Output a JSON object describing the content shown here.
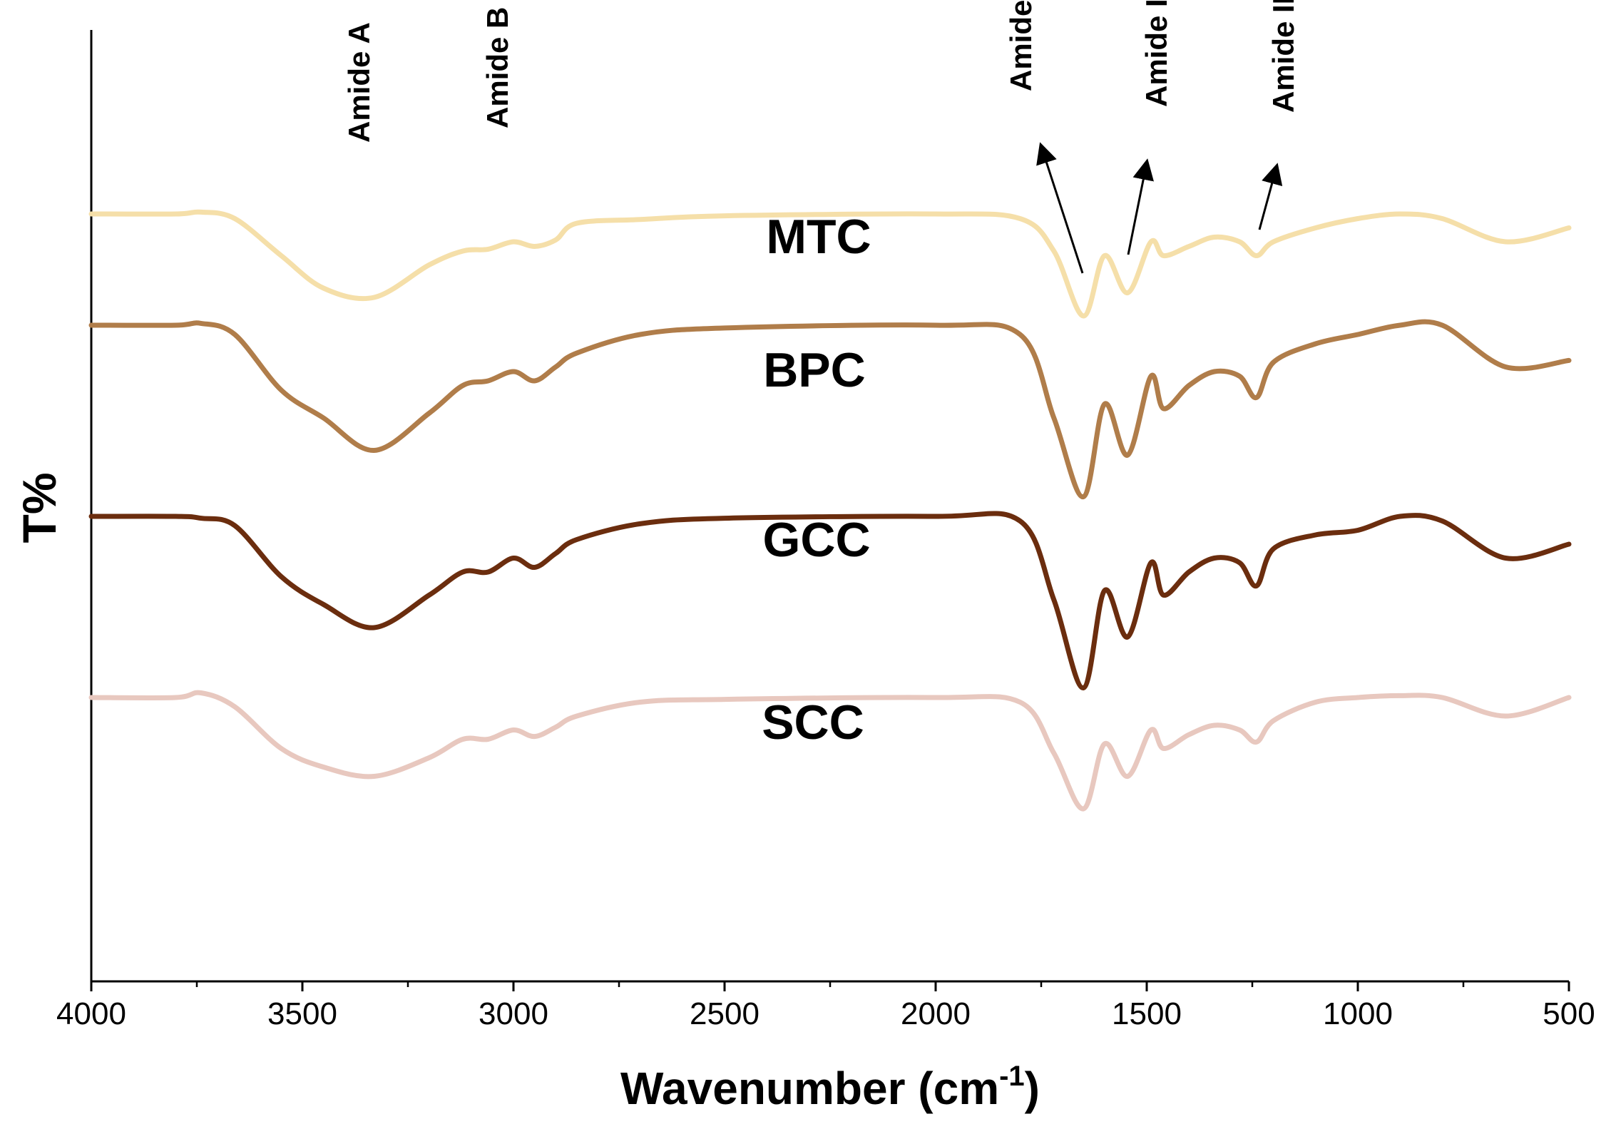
{
  "chart_data": {
    "type": "line",
    "title": "",
    "xlabel": "Wavenumber (cm",
    "xlabel_sup": "-1",
    "xlabel_close": ")",
    "ylabel": "T%",
    "xlim": [
      4000,
      500
    ],
    "x_ticks": [
      4000,
      3500,
      3000,
      2500,
      2000,
      1500,
      1000,
      500
    ],
    "y_ticks_visible": false,
    "grid": false,
    "annotations": [
      {
        "text": "Amide A",
        "x": 3330,
        "arrow": false
      },
      {
        "text": "Amide B",
        "x": 3000,
        "arrow": false
      },
      {
        "text": "Amide I",
        "x": 1650,
        "arrow": true
      },
      {
        "text": "Amide II",
        "x": 1540,
        "arrow": true
      },
      {
        "text": "Amide III",
        "x": 1240,
        "arrow": true
      }
    ],
    "series": [
      {
        "name": "MTC",
        "color": "#F5DFA9",
        "relative_intensity": 0.55,
        "baseline_offset": 0.0,
        "points": [
          [
            4000,
            0
          ],
          [
            3800,
            0
          ],
          [
            3740,
            0.02
          ],
          [
            3660,
            -0.05
          ],
          [
            3550,
            -0.45
          ],
          [
            3450,
            -0.8
          ],
          [
            3330,
            -0.9
          ],
          [
            3200,
            -0.55
          ],
          [
            3120,
            -0.4
          ],
          [
            3060,
            -0.38
          ],
          [
            3000,
            -0.3
          ],
          [
            2950,
            -0.35
          ],
          [
            2900,
            -0.28
          ],
          [
            2850,
            -0.1
          ],
          [
            2700,
            -0.06
          ],
          [
            2500,
            -0.02
          ],
          [
            2000,
            0
          ],
          [
            1800,
            -0.05
          ],
          [
            1720,
            -0.4
          ],
          [
            1650,
            -1.1
          ],
          [
            1600,
            -0.45
          ],
          [
            1545,
            -0.85
          ],
          [
            1490,
            -0.3
          ],
          [
            1460,
            -0.45
          ],
          [
            1400,
            -0.35
          ],
          [
            1340,
            -0.25
          ],
          [
            1280,
            -0.3
          ],
          [
            1240,
            -0.45
          ],
          [
            1200,
            -0.3
          ],
          [
            1100,
            -0.15
          ],
          [
            1000,
            -0.05
          ],
          [
            900,
            0
          ],
          [
            800,
            -0.05
          ],
          [
            650,
            -0.3
          ],
          [
            500,
            -0.15
          ]
        ]
      },
      {
        "name": "BPC",
        "color": "#B07D4A",
        "relative_intensity": 1.0,
        "baseline_offset": 1.0,
        "points": [
          [
            4000,
            0
          ],
          [
            3800,
            0
          ],
          [
            3740,
            0.02
          ],
          [
            3660,
            -0.1
          ],
          [
            3550,
            -0.7
          ],
          [
            3450,
            -1.0
          ],
          [
            3330,
            -1.35
          ],
          [
            3200,
            -0.95
          ],
          [
            3120,
            -0.65
          ],
          [
            3060,
            -0.6
          ],
          [
            3000,
            -0.5
          ],
          [
            2950,
            -0.6
          ],
          [
            2900,
            -0.45
          ],
          [
            2850,
            -0.3
          ],
          [
            2700,
            -0.1
          ],
          [
            2500,
            -0.03
          ],
          [
            2000,
            0
          ],
          [
            1800,
            -0.1
          ],
          [
            1720,
            -1.0
          ],
          [
            1650,
            -1.85
          ],
          [
            1600,
            -0.85
          ],
          [
            1545,
            -1.4
          ],
          [
            1490,
            -0.55
          ],
          [
            1460,
            -0.9
          ],
          [
            1400,
            -0.65
          ],
          [
            1340,
            -0.5
          ],
          [
            1280,
            -0.55
          ],
          [
            1240,
            -0.78
          ],
          [
            1200,
            -0.4
          ],
          [
            1100,
            -0.2
          ],
          [
            1000,
            -0.1
          ],
          [
            900,
            0
          ],
          [
            800,
            0
          ],
          [
            650,
            -0.45
          ],
          [
            500,
            -0.38
          ]
        ]
      },
      {
        "name": "GCC",
        "color": "#6B2D0E",
        "relative_intensity": 1.0,
        "baseline_offset": 2.0,
        "points": [
          [
            4000,
            0
          ],
          [
            3800,
            0
          ],
          [
            3740,
            -0.02
          ],
          [
            3660,
            -0.1
          ],
          [
            3550,
            -0.65
          ],
          [
            3450,
            -0.95
          ],
          [
            3330,
            -1.2
          ],
          [
            3200,
            -0.85
          ],
          [
            3120,
            -0.6
          ],
          [
            3060,
            -0.6
          ],
          [
            3000,
            -0.45
          ],
          [
            2950,
            -0.55
          ],
          [
            2900,
            -0.4
          ],
          [
            2850,
            -0.25
          ],
          [
            2700,
            -0.08
          ],
          [
            2500,
            -0.02
          ],
          [
            2000,
            0
          ],
          [
            1800,
            -0.05
          ],
          [
            1720,
            -0.9
          ],
          [
            1650,
            -1.85
          ],
          [
            1600,
            -0.8
          ],
          [
            1545,
            -1.3
          ],
          [
            1490,
            -0.5
          ],
          [
            1460,
            -0.85
          ],
          [
            1400,
            -0.6
          ],
          [
            1340,
            -0.45
          ],
          [
            1280,
            -0.5
          ],
          [
            1240,
            -0.75
          ],
          [
            1200,
            -0.35
          ],
          [
            1100,
            -0.2
          ],
          [
            1000,
            -0.15
          ],
          [
            900,
            0
          ],
          [
            800,
            -0.05
          ],
          [
            650,
            -0.45
          ],
          [
            500,
            -0.3
          ]
        ]
      },
      {
        "name": "SCC",
        "color": "#E8C8BF",
        "relative_intensity": 0.75,
        "baseline_offset": 3.0,
        "points": [
          [
            4000,
            0
          ],
          [
            3800,
            0
          ],
          [
            3740,
            0.05
          ],
          [
            3660,
            -0.1
          ],
          [
            3550,
            -0.55
          ],
          [
            3450,
            -0.75
          ],
          [
            3330,
            -0.85
          ],
          [
            3200,
            -0.65
          ],
          [
            3120,
            -0.45
          ],
          [
            3060,
            -0.45
          ],
          [
            3000,
            -0.35
          ],
          [
            2950,
            -0.42
          ],
          [
            2900,
            -0.32
          ],
          [
            2850,
            -0.2
          ],
          [
            2700,
            -0.05
          ],
          [
            2500,
            -0.02
          ],
          [
            2000,
            0
          ],
          [
            1800,
            -0.05
          ],
          [
            1720,
            -0.6
          ],
          [
            1650,
            -1.2
          ],
          [
            1600,
            -0.5
          ],
          [
            1545,
            -0.85
          ],
          [
            1490,
            -0.35
          ],
          [
            1460,
            -0.55
          ],
          [
            1400,
            -0.4
          ],
          [
            1340,
            -0.3
          ],
          [
            1280,
            -0.35
          ],
          [
            1240,
            -0.48
          ],
          [
            1200,
            -0.25
          ],
          [
            1100,
            -0.05
          ],
          [
            1000,
            0
          ],
          [
            900,
            0.02
          ],
          [
            800,
            0
          ],
          [
            650,
            -0.2
          ],
          [
            500,
            0
          ]
        ]
      }
    ]
  }
}
